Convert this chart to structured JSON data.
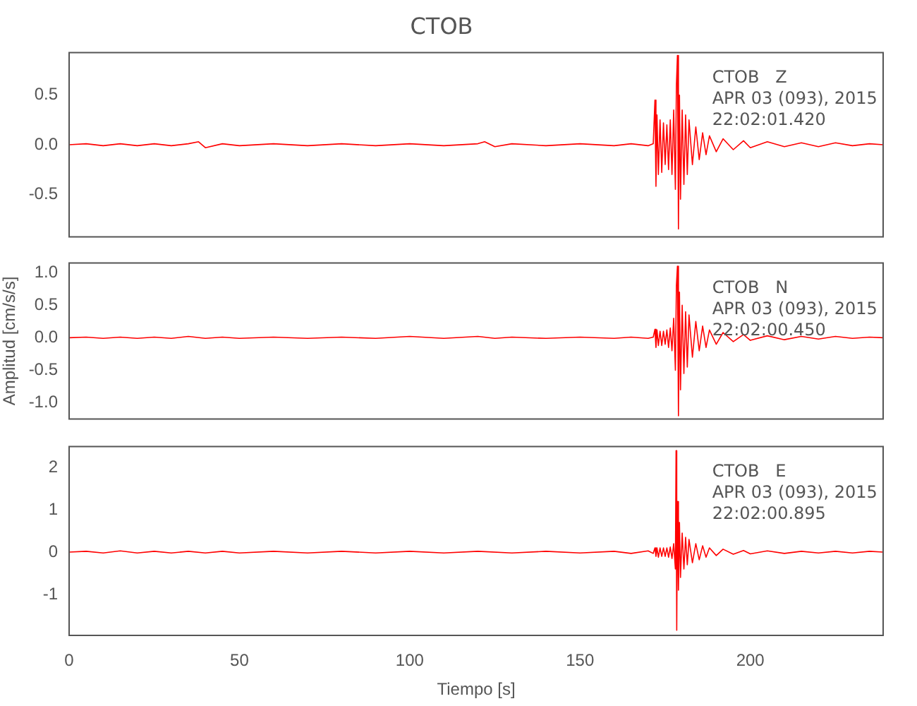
{
  "chart_data": [
    {
      "type": "line",
      "title": "CTOB",
      "annotations": [
        "CTOB   Z",
        "APR 03 (093), 2015",
        "22:02:01.420"
      ],
      "tick_labels": "y",
      "grid": false,
      "marker": "none",
      "legend": false,
      "xlim": [
        0,
        239
      ],
      "ylim": [
        -0.93,
        0.93
      ],
      "yticks": [
        {
          "value": -0.5,
          "label": "-0.5"
        },
        {
          "value": 0,
          "label": "0.0"
        },
        {
          "value": 0.5,
          "label": "0.5"
        }
      ],
      "series": [
        {
          "color": "#ff0000",
          "x": [
            0,
            5,
            10,
            15,
            20,
            25,
            30,
            35,
            38,
            40,
            45,
            50,
            60,
            70,
            80,
            90,
            100,
            110,
            120,
            122,
            125,
            130,
            140,
            150,
            160,
            165,
            170,
            171.5,
            172,
            172.3,
            172.6,
            173,
            173.5,
            174,
            174.5,
            175,
            175.5,
            176,
            176.5,
            177,
            177.5,
            178,
            178.3,
            178.6,
            178.9,
            179.2,
            179.5,
            180,
            180.5,
            181,
            181.5,
            182,
            183,
            184,
            185,
            186,
            187,
            188,
            190,
            192,
            195,
            198,
            200,
            205,
            210,
            215,
            220,
            225,
            230,
            235,
            239
          ],
          "values": [
            0,
            0.01,
            -0.01,
            0.01,
            -0.01,
            0.01,
            -0.01,
            0.01,
            0.03,
            -0.03,
            0.01,
            -0.01,
            0.01,
            -0.01,
            0.01,
            -0.01,
            0.01,
            -0.01,
            0.01,
            0.03,
            -0.02,
            0.01,
            -0.01,
            0.01,
            -0.01,
            0.01,
            -0.01,
            0.01,
            0.45,
            -0.42,
            0.3,
            -0.3,
            0.25,
            -0.28,
            0.22,
            -0.2,
            0.2,
            -0.25,
            0.25,
            -0.3,
            0.35,
            -0.45,
            0.6,
            0.9,
            -0.85,
            0.5,
            -0.55,
            0.35,
            -0.4,
            0.3,
            -0.3,
            0.25,
            -0.2,
            0.18,
            -0.15,
            0.12,
            -0.1,
            0.09,
            -0.07,
            0.06,
            -0.05,
            0.04,
            -0.03,
            0.03,
            -0.02,
            0.02,
            -0.02,
            0.02,
            -0.01,
            0.01,
            0
          ]
        }
      ]
    },
    {
      "type": "line",
      "ylabel": "Amplitud [cm/s/s]",
      "annotations": [
        "CTOB   N",
        "APR 03 (093), 2015",
        "22:02:00.450"
      ],
      "tick_labels": "y",
      "grid": false,
      "marker": "none",
      "legend": false,
      "xlim": [
        0,
        239
      ],
      "ylim": [
        -1.25,
        1.15
      ],
      "yticks": [
        {
          "value": -1,
          "label": "-1.0"
        },
        {
          "value": -0.5,
          "label": "-0.5"
        },
        {
          "value": 0,
          "label": "0.0"
        },
        {
          "value": 0.5,
          "label": "0.5"
        },
        {
          "value": 1,
          "label": "1.0"
        }
      ],
      "series": [
        {
          "color": "#ff0000",
          "x": [
            0,
            5,
            10,
            15,
            20,
            25,
            30,
            35,
            40,
            45,
            50,
            60,
            70,
            80,
            90,
            100,
            110,
            120,
            125,
            130,
            140,
            150,
            160,
            165,
            170,
            171.5,
            172,
            172.3,
            172.6,
            173,
            173.5,
            174,
            174.5,
            175,
            175.5,
            176,
            176.5,
            177,
            177.5,
            178,
            178.3,
            178.6,
            178.9,
            179.2,
            179.5,
            180,
            180.5,
            181,
            181.5,
            182,
            183,
            184,
            185,
            186,
            187,
            188,
            190,
            192,
            195,
            198,
            200,
            205,
            210,
            215,
            220,
            225,
            230,
            235,
            239
          ],
          "values": [
            0,
            0.01,
            -0.01,
            0.01,
            -0.01,
            0.01,
            -0.01,
            0.02,
            -0.01,
            0.01,
            -0.01,
            0.01,
            -0.01,
            0.01,
            -0.01,
            0.02,
            -0.01,
            0.02,
            -0.01,
            0.01,
            -0.01,
            0.01,
            -0.01,
            0.01,
            -0.01,
            0.01,
            0.13,
            -0.15,
            0.12,
            -0.12,
            0.1,
            -0.12,
            0.1,
            -0.1,
            0.12,
            -0.15,
            0.15,
            -0.2,
            0.3,
            -0.5,
            0.8,
            1.1,
            -1.2,
            0.7,
            -0.8,
            0.5,
            -0.55,
            0.4,
            -0.45,
            0.35,
            -0.3,
            0.25,
            -0.2,
            0.18,
            -0.15,
            0.12,
            -0.1,
            0.08,
            -0.06,
            0.05,
            -0.04,
            0.03,
            -0.03,
            0.02,
            -0.02,
            0.02,
            -0.01,
            0.01,
            0
          ]
        }
      ]
    },
    {
      "type": "line",
      "xlabel": "Tiempo [s]",
      "annotations": [
        "CTOB   E",
        "APR 03 (093), 2015",
        "22:02:00.895"
      ],
      "grid": false,
      "marker": "none",
      "legend": false,
      "xlim": [
        0,
        239
      ],
      "ylim": [
        -1.97,
        2.5
      ],
      "xticks": [
        0,
        50,
        100,
        150,
        200
      ],
      "yticks": [
        -1,
        0,
        1,
        2
      ],
      "series": [
        {
          "color": "#ff0000",
          "x": [
            0,
            5,
            10,
            15,
            20,
            25,
            30,
            35,
            40,
            45,
            50,
            60,
            70,
            80,
            90,
            100,
            110,
            120,
            130,
            140,
            150,
            160,
            165,
            170,
            171.5,
            172,
            172.3,
            172.6,
            173,
            173.5,
            174,
            174.5,
            175,
            175.5,
            176,
            176.5,
            177,
            177.5,
            178,
            178.2,
            178.4,
            178.6,
            178.9,
            179.2,
            179.5,
            180,
            180.5,
            181,
            181.5,
            182,
            183,
            184,
            185,
            186,
            187,
            188,
            190,
            192,
            195,
            198,
            200,
            205,
            210,
            215,
            220,
            225,
            230,
            235,
            239
          ],
          "values": [
            0,
            0.02,
            -0.02,
            0.03,
            -0.02,
            0.02,
            -0.02,
            0.02,
            -0.02,
            0.02,
            -0.02,
            0.02,
            -0.02,
            0.02,
            -0.02,
            0.02,
            -0.02,
            0.02,
            -0.02,
            0.02,
            -0.02,
            0.02,
            -0.03,
            0.03,
            -0.03,
            0.1,
            -0.1,
            0.1,
            -0.12,
            0.1,
            -0.1,
            0.1,
            -0.1,
            0.1,
            -0.12,
            0.12,
            -0.15,
            0.2,
            -0.4,
            2.4,
            -1.85,
            1.2,
            -0.9,
            0.7,
            -0.6,
            0.45,
            -0.4,
            0.35,
            -0.3,
            0.3,
            -0.25,
            0.2,
            -0.18,
            0.15,
            -0.12,
            0.1,
            -0.08,
            0.07,
            -0.05,
            0.04,
            -0.04,
            0.03,
            -0.03,
            0.02,
            -0.02,
            0.02,
            -0.02,
            0.02,
            0
          ]
        }
      ]
    }
  ]
}
